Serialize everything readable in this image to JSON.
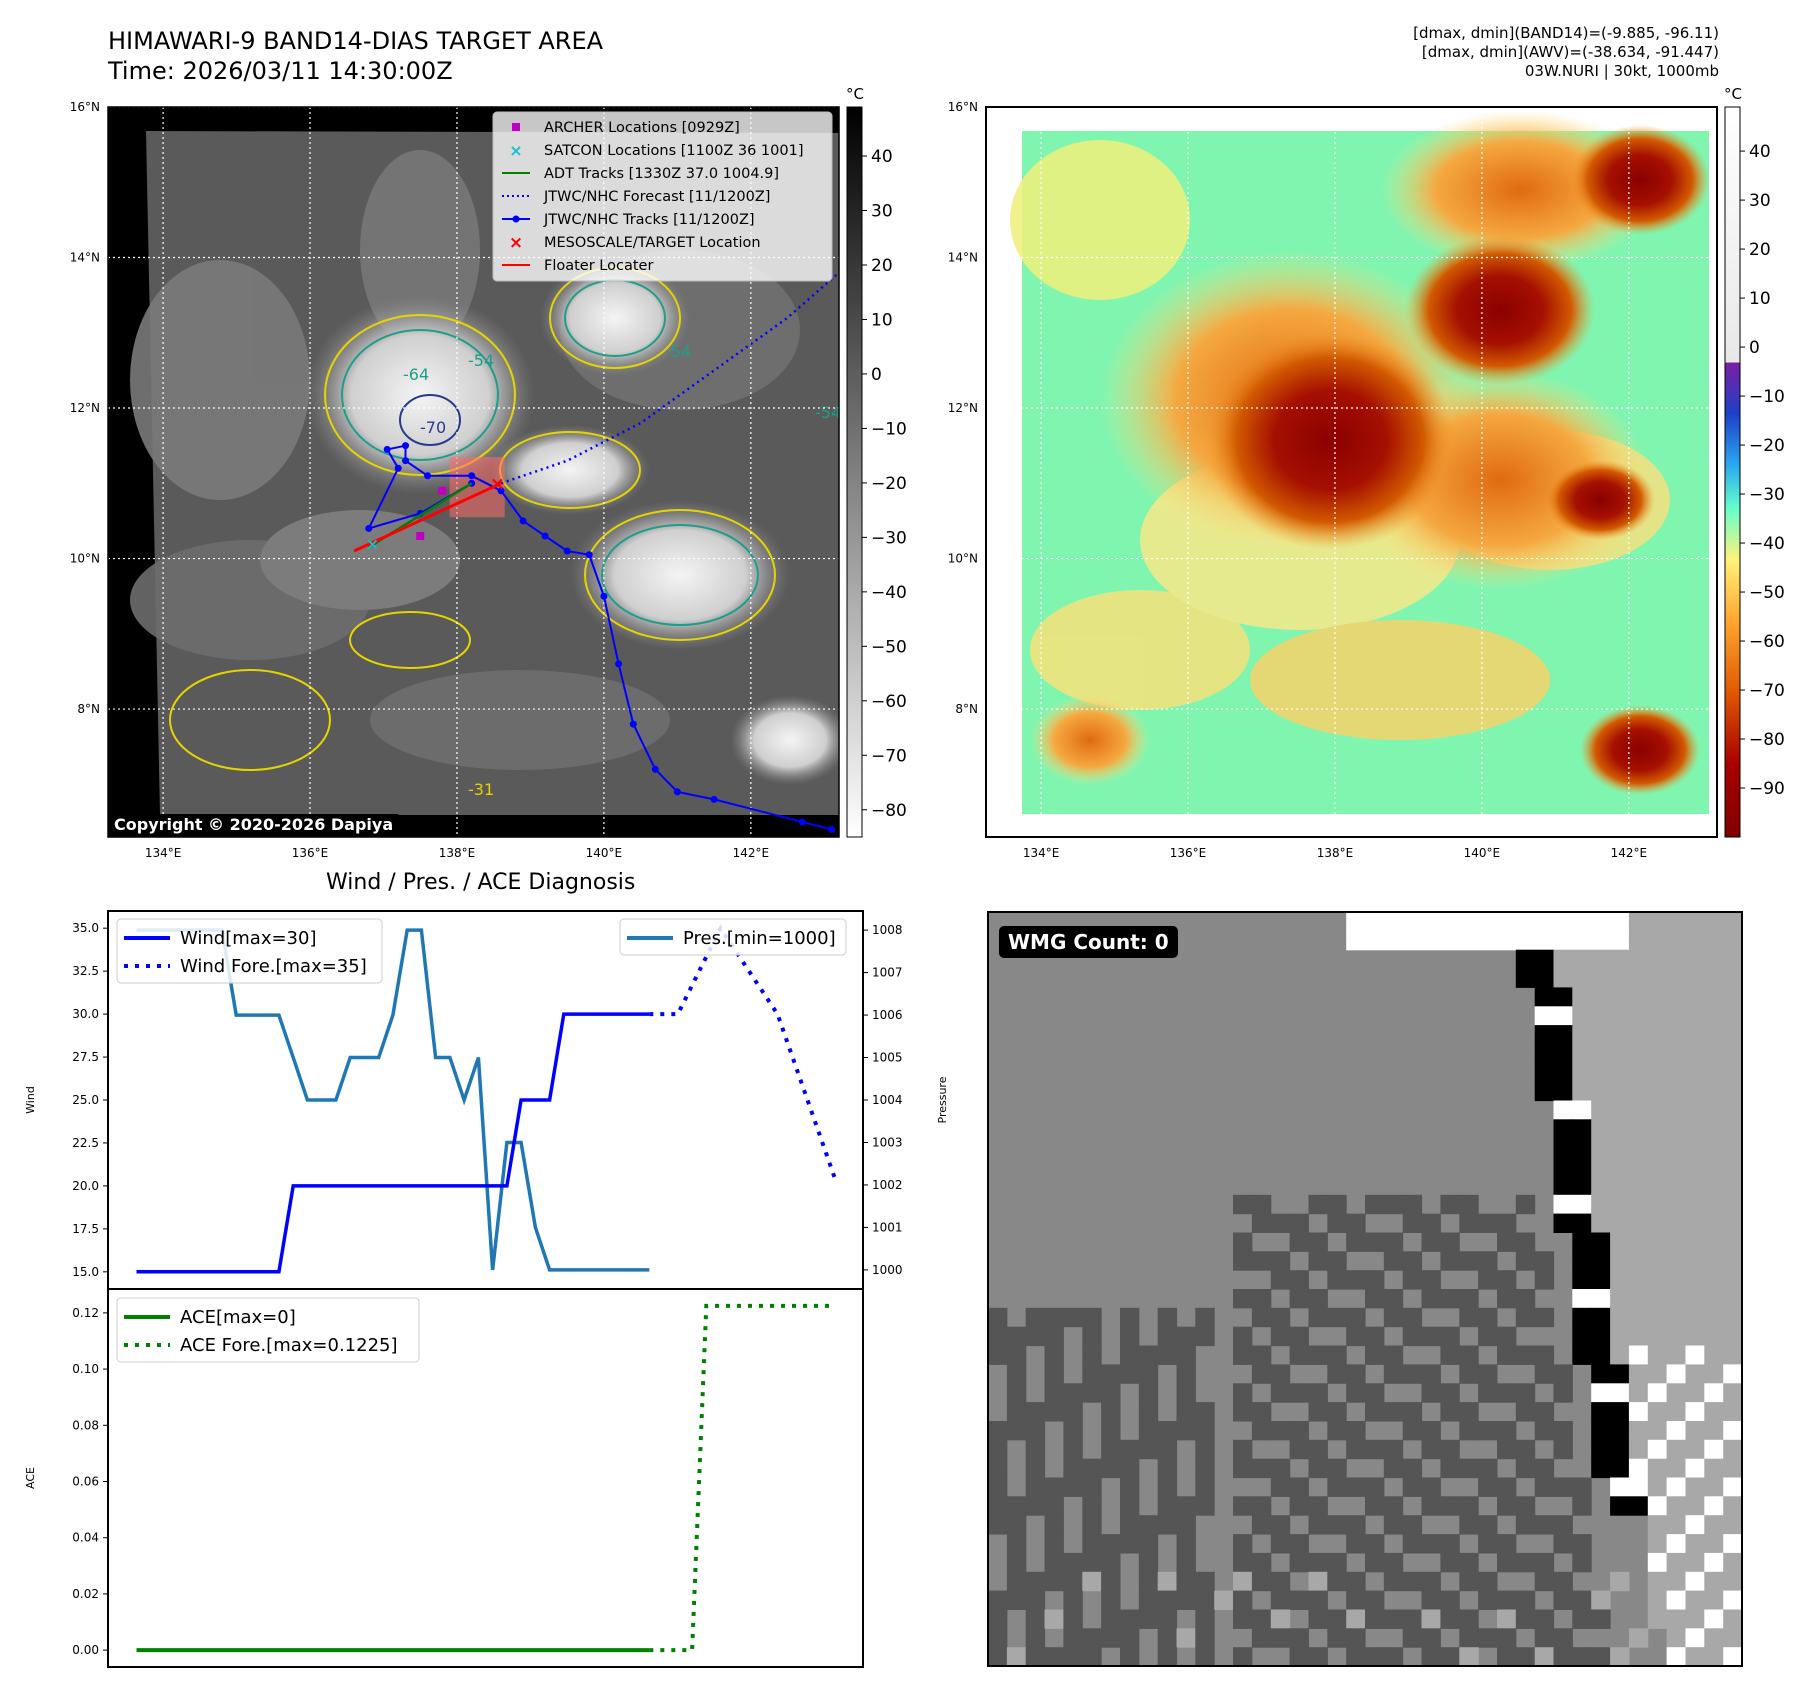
{
  "header": {
    "title_line1": "HIMAWARI-9 BAND14-DIAS TARGET AREA",
    "title_line2": "Time: 2026/03/11 14:30:00Z",
    "stats_line1": "[dmax, dmin](BAND14)=(-9.885, -96.11)",
    "stats_line2": "[dmax, dmin](AWV)=(-38.634, -91.447)",
    "stats_line3": "03W.NURI | 30kt, 1000mb"
  },
  "copyright": "Copyright © 2020-2026 Dapiya",
  "diag_title": "Wind / Pres. / ACE Diagnosis",
  "wmg_label": "WMG Count: 0",
  "colors": {
    "wind": "#0000ff",
    "pres": "#1f77b4",
    "ace": "#008000",
    "track": "#0000ff",
    "floater": "#ff0000",
    "archer": "#c000c0",
    "satcon": "#17becf"
  },
  "chart_data": [
    {
      "type": "heatmap",
      "name": "BAND14 IR map",
      "cbar_unit": "°C",
      "cbar_ticks": [
        "40",
        "30",
        "20",
        "10",
        "0",
        "−10",
        "−20",
        "−30",
        "−40",
        "−50",
        "−60",
        "−70",
        "−80"
      ],
      "cbar_values": [
        40,
        30,
        20,
        10,
        0,
        -10,
        -20,
        -30,
        -40,
        -50,
        -60,
        -70,
        -80
      ],
      "cbar_range": [
        -85,
        49
      ],
      "lon_ticks": [
        "134°E",
        "136°E",
        "138°E",
        "140°E",
        "142°E"
      ],
      "lon_values": [
        134,
        136,
        138,
        140,
        142
      ],
      "lat_ticks": [
        "16°N",
        "14°N",
        "12°N",
        "10°N",
        "8°N"
      ],
      "lat_values": [
        16,
        14,
        12,
        10,
        8
      ],
      "lon_range": [
        133.25,
        143.2
      ],
      "lat_range": [
        6.3,
        16
      ],
      "legend": [
        {
          "label": "ARCHER Locations [0929Z]",
          "kind": "square"
        },
        {
          "label": "SATCON Locations [1100Z 36 1001]",
          "kind": "x"
        },
        {
          "label": "ADT Tracks [1330Z 37.0 1004.9]",
          "kind": "line-green"
        },
        {
          "label": "JTWC/NHC Forecast [11/1200Z]",
          "kind": "dotted-blue"
        },
        {
          "label": "JTWC/NHC Tracks [11/1200Z]",
          "kind": "track-blue"
        },
        {
          "label": "MESOSCALE/TARGET Location",
          "kind": "x-red"
        },
        {
          "label": "Floater Locater",
          "kind": "line-red"
        }
      ],
      "contour_labels": [
        "-64",
        "-70",
        "-54",
        "-54",
        "-54",
        "-31"
      ],
      "track_lonlat": [
        [
          143.1,
          6.4
        ],
        [
          142.7,
          6.5
        ],
        [
          141.5,
          6.8
        ],
        [
          141.0,
          6.9
        ],
        [
          140.7,
          7.2
        ],
        [
          140.4,
          7.8
        ],
        [
          140.2,
          8.6
        ],
        [
          140.0,
          9.5
        ],
        [
          139.8,
          10.05
        ],
        [
          139.5,
          10.1
        ],
        [
          139.2,
          10.3
        ],
        [
          138.9,
          10.5
        ],
        [
          138.6,
          10.9
        ],
        [
          138.2,
          11.1
        ],
        [
          137.6,
          11.1
        ],
        [
          137.3,
          11.3
        ],
        [
          137.3,
          11.5
        ],
        [
          137.05,
          11.45
        ],
        [
          137.2,
          11.2
        ],
        [
          136.8,
          10.4
        ],
        [
          137.5,
          10.6
        ],
        [
          138.2,
          11.0
        ]
      ],
      "forecast_lonlat": [
        [
          138.6,
          11.0
        ],
        [
          139.5,
          11.3
        ],
        [
          140.5,
          11.8
        ],
        [
          141.5,
          12.5
        ],
        [
          142.5,
          13.2
        ],
        [
          143.2,
          13.8
        ]
      ],
      "floater_lonlat": [
        [
          136.6,
          10.1
        ],
        [
          138.6,
          11.0
        ]
      ],
      "adt_lonlat": [
        [
          136.8,
          10.15
        ],
        [
          138.2,
          11.0
        ]
      ],
      "archer_lonlat": [
        [
          137.5,
          10.3
        ],
        [
          137.8,
          10.9
        ]
      ],
      "satcon_lonlat": [
        [
          136.85,
          10.2
        ]
      ],
      "target_lonlat": [
        [
          138.55,
          11.0
        ]
      ],
      "target_box_lonlat": [
        [
          137.9,
          10.55
        ],
        [
          138.65,
          11.35
        ]
      ]
    },
    {
      "type": "heatmap",
      "name": "AWV map",
      "cbar_unit": "°C",
      "cbar_ticks": [
        "40",
        "30",
        "20",
        "10",
        "0",
        "−10",
        "−20",
        "−30",
        "−40",
        "−50",
        "−60",
        "−70",
        "−80",
        "−90"
      ],
      "cbar_values": [
        40,
        30,
        20,
        10,
        0,
        -10,
        -20,
        -30,
        -40,
        -50,
        -60,
        -70,
        -80,
        -90
      ],
      "cbar_range": [
        -100,
        49
      ],
      "lon_ticks": [
        "134°E",
        "136°E",
        "138°E",
        "140°E",
        "142°E"
      ],
      "lon_values": [
        134,
        136,
        138,
        140,
        142
      ],
      "lat_ticks": [
        "16°N",
        "14°N",
        "12°N",
        "10°N",
        "8°N"
      ],
      "lat_values": [
        16,
        14,
        12,
        10,
        8
      ],
      "lon_range": [
        133.25,
        143.2
      ],
      "lat_range": [
        6.3,
        16
      ]
    },
    {
      "type": "line",
      "name": "Wind / Pressure",
      "x": [
        0,
        1,
        2,
        3,
        4,
        5,
        6,
        7,
        8,
        9,
        10,
        11,
        12,
        13,
        14,
        15,
        16,
        17,
        18,
        19,
        20,
        21,
        22,
        23,
        24,
        25,
        26,
        27,
        28,
        29,
        30,
        31,
        32,
        33,
        34,
        35,
        36,
        37,
        38,
        39,
        40,
        41,
        42,
        43,
        44,
        45,
        46,
        47,
        48,
        49
      ],
      "series": [
        {
          "name": "Wind[max=30]",
          "axis": "left",
          "style": "solid",
          "x": [
            0,
            1,
            2,
            3,
            4,
            5,
            6,
            7,
            8,
            9,
            10,
            11,
            12,
            13,
            14,
            15,
            16,
            17,
            18,
            19,
            20,
            21,
            22,
            23,
            24,
            25,
            26,
            27,
            28,
            29,
            30,
            31,
            32,
            33,
            34,
            35,
            36
          ],
          "values": [
            15,
            15,
            15,
            15,
            15,
            15,
            15,
            15,
            15,
            15,
            15,
            20,
            20,
            20,
            20,
            20,
            20,
            20,
            20,
            20,
            20,
            20,
            20,
            20,
            20,
            20,
            20,
            25,
            25,
            25,
            30,
            30,
            30,
            30,
            30,
            30,
            30
          ]
        },
        {
          "name": "Wind Fore.[max=35]",
          "axis": "right-dotted",
          "style": "dotted",
          "x": [
            36,
            38,
            41,
            43,
            45,
            49
          ],
          "values": [
            30,
            30,
            35,
            32.5,
            30,
            20.5
          ]
        },
        {
          "name": "Pres.[min=1000]",
          "axis": "right",
          "style": "solid",
          "x": [
            0,
            1,
            2,
            3,
            4,
            5,
            6,
            7,
            8,
            9,
            10,
            11,
            12,
            13,
            14,
            15,
            16,
            17,
            18,
            19,
            20,
            21,
            22,
            23,
            24,
            25,
            26,
            27,
            28,
            29,
            30,
            31,
            32,
            33,
            34,
            35,
            36
          ],
          "values": [
            1008,
            1008,
            1008,
            1008,
            1008,
            1008,
            1008,
            1006,
            1006,
            1006,
            1006,
            1005,
            1004,
            1004,
            1004,
            1005,
            1005,
            1005,
            1006,
            1008,
            1008,
            1005,
            1005,
            1004,
            1005,
            1000,
            1003,
            1003,
            1001,
            1000,
            1000,
            1000,
            1000,
            1000,
            1000,
            1000,
            1000
          ]
        }
      ],
      "xlim": [
        -2,
        51
      ],
      "ylim_left": [
        14,
        36
      ],
      "ylim_right": [
        999.55,
        1008.45
      ],
      "yticks_left": [
        "15.0",
        "17.5",
        "20.0",
        "22.5",
        "25.0",
        "27.5",
        "30.0",
        "32.5",
        "35.0"
      ],
      "yticks_left_values": [
        15,
        17.5,
        20,
        22.5,
        25,
        27.5,
        30,
        32.5,
        35
      ],
      "yticks_right": [
        "1000",
        "1001",
        "1002",
        "1003",
        "1004",
        "1005",
        "1006",
        "1007",
        "1008"
      ],
      "yticks_right_values": [
        1000,
        1001,
        1002,
        1003,
        1004,
        1005,
        1006,
        1007,
        1008
      ],
      "ylabel": "Wind",
      "ylabel_right": "Pressure"
    },
    {
      "type": "line",
      "name": "ACE",
      "series": [
        {
          "name": "ACE[max=0]",
          "style": "solid",
          "x": [
            0,
            36
          ],
          "values": [
            0,
            0
          ]
        },
        {
          "name": "ACE Fore.[max=0.1225]",
          "style": "dotted",
          "x": [
            36,
            39,
            40,
            49
          ],
          "values": [
            0,
            0,
            0.1225,
            0.1225
          ]
        }
      ],
      "xlim": [
        -2,
        51
      ],
      "ylim": [
        -0.006,
        0.1285
      ],
      "yticks": [
        "0.00",
        "0.02",
        "0.04",
        "0.06",
        "0.08",
        "0.10",
        "0.12"
      ],
      "ytick_values": [
        0,
        0.02,
        0.04,
        0.06,
        0.08,
        0.1,
        0.12
      ],
      "ylabel": "ACE"
    },
    {
      "type": "heatmap",
      "name": "WMG grayscale grid",
      "value_labels": {
        "white": "white",
        "black": "black",
        "light": "light",
        "medium": "medium",
        "dark": "dark"
      }
    }
  ]
}
